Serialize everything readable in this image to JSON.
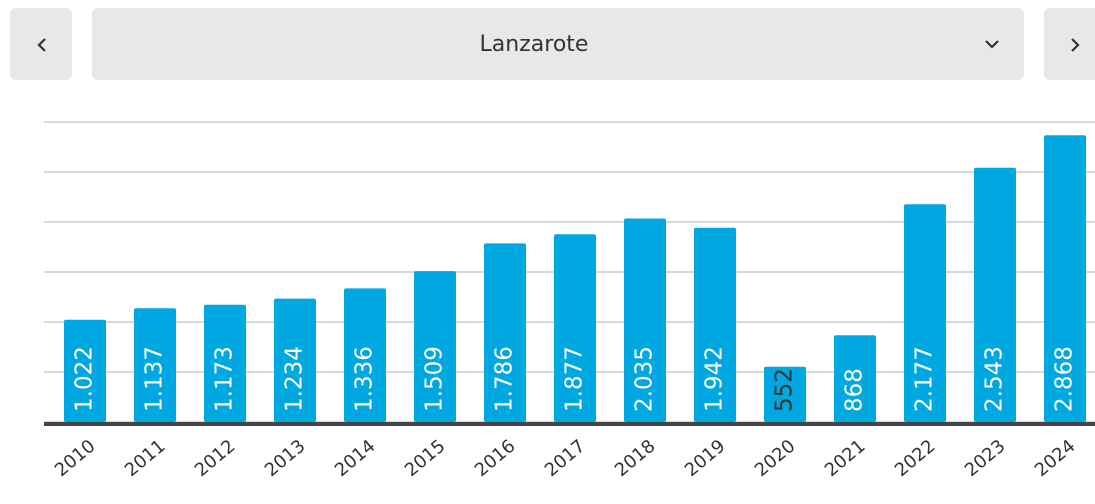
{
  "selector": {
    "value": "Lanzarote"
  },
  "chart_data": {
    "type": "bar",
    "categories": [
      "2010",
      "2011",
      "2012",
      "2013",
      "2014",
      "2015",
      "2016",
      "2017",
      "2018",
      "2019",
      "2020",
      "2021",
      "2022",
      "2023",
      "2024"
    ],
    "values": [
      1022,
      1137,
      1173,
      1234,
      1336,
      1509,
      1786,
      1877,
      2035,
      1942,
      552,
      868,
      2177,
      2543,
      2868
    ],
    "value_labels": [
      "1.022",
      "1.137",
      "1.173",
      "1.234",
      "1.336",
      "1.509",
      "1.786",
      "1.877",
      "2.035",
      "1.942",
      "552",
      "868",
      "2.177",
      "2.543",
      "2.868"
    ],
    "color": "#00a8e1",
    "ylim": [
      0,
      3000
    ],
    "yticks": [
      0,
      500,
      1000,
      1500,
      2000,
      2500,
      3000
    ],
    "grid": true
  }
}
